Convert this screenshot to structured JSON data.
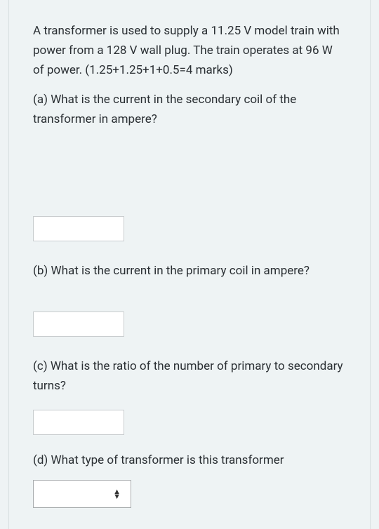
{
  "question": {
    "intro": "A transformer is used to supply a 11.25 V model train with power from a 128 V wall plug. The train operates at 96 W of power. (1.25+1.25+1+0.5=4 marks)",
    "parts": {
      "a": "(a) What is the current in the secondary coil of the transformer in ampere?",
      "b": "(b) What is the current in the primary coil in ampere?",
      "c": "(c) What is the ratio of the number of primary to secondary turns?",
      "d": "(d) What type of transformer is this transformer"
    }
  },
  "inputs": {
    "a_value": "",
    "b_value": "",
    "c_value": "",
    "d_value": ""
  },
  "colors": {
    "background": "#eef3f4",
    "border": "#d8dfe0",
    "input_border": "#c8ccce",
    "select_border": "#a8acae",
    "text": "#2a2f33"
  },
  "typography": {
    "body_fontsize": 17,
    "line_height": 1.65
  }
}
